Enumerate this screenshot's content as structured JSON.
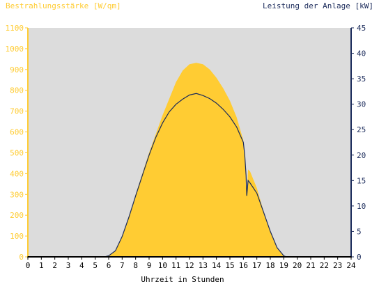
{
  "chart_data": {
    "type": "area",
    "title_left": "Bestrahlungsstärke [W/qm]",
    "title_right": "Leistung der Anlage [kW]",
    "xlabel": "Uhrzeit in Stunden",
    "x_ticks": [
      "0",
      "1",
      "2",
      "3",
      "4",
      "5",
      "6",
      "7",
      "8",
      "9",
      "10",
      "11",
      "12",
      "13",
      "14",
      "15",
      "16",
      "17",
      "18",
      "19",
      "20",
      "21",
      "22",
      "23",
      "24"
    ],
    "xlim": [
      0,
      24
    ],
    "y_left": {
      "min": 0,
      "max": 1100,
      "step": 100,
      "ticks": [
        "0",
        "100",
        "200",
        "300",
        "400",
        "500",
        "600",
        "700",
        "800",
        "900",
        "1000",
        "1100"
      ]
    },
    "y_right": {
      "min": 0,
      "max": 45,
      "step": 5,
      "ticks": [
        "0",
        "5",
        "10",
        "15",
        "20",
        "25",
        "30",
        "35",
        "40",
        "45"
      ]
    },
    "grid": false,
    "colors": {
      "left_axis": "#ffcc33",
      "right_axis": "#1a2a5a",
      "plot_bg": "#dcdcdc",
      "area": "#ffcc33",
      "line": "#1a2a5a"
    },
    "series": [
      {
        "axis": "left",
        "points": [
          [
            0,
            0
          ],
          [
            5.5,
            0
          ],
          [
            6,
            5
          ],
          [
            6.5,
            30
          ],
          [
            7,
            100
          ],
          [
            7.5,
            190
          ],
          [
            8,
            300
          ],
          [
            8.5,
            400
          ],
          [
            9,
            500
          ],
          [
            9.5,
            590
          ],
          [
            10,
            680
          ],
          [
            10.5,
            760
          ],
          [
            11,
            840
          ],
          [
            11.5,
            895
          ],
          [
            12,
            925
          ],
          [
            12.5,
            932
          ],
          [
            13,
            925
          ],
          [
            13.5,
            900
          ],
          [
            14,
            860
          ],
          [
            14.5,
            810
          ],
          [
            15,
            750
          ],
          [
            15.5,
            670
          ],
          [
            16,
            560
          ],
          [
            16.1,
            480
          ],
          [
            16.2,
            360
          ],
          [
            16.25,
            300
          ],
          [
            16.35,
            420
          ],
          [
            16.5,
            410
          ],
          [
            17,
            330
          ],
          [
            17.5,
            220
          ],
          [
            18,
            120
          ],
          [
            18.5,
            40
          ],
          [
            19,
            5
          ],
          [
            19.3,
            0
          ],
          [
            24,
            0
          ]
        ]
      },
      {
        "axis": "right",
        "points": [
          [
            0,
            0
          ],
          [
            5.7,
            0
          ],
          [
            6,
            0.2
          ],
          [
            6.5,
            1.2
          ],
          [
            7,
            4
          ],
          [
            7.5,
            7.8
          ],
          [
            8,
            12
          ],
          [
            8.5,
            16
          ],
          [
            9,
            20
          ],
          [
            9.5,
            23.5
          ],
          [
            10,
            26.3
          ],
          [
            10.5,
            28.5
          ],
          [
            11,
            30
          ],
          [
            11.5,
            31
          ],
          [
            12,
            31.8
          ],
          [
            12.5,
            32.1
          ],
          [
            13,
            31.7
          ],
          [
            13.5,
            31.1
          ],
          [
            14,
            30.2
          ],
          [
            14.5,
            29
          ],
          [
            15,
            27.5
          ],
          [
            15.5,
            25.5
          ],
          [
            16,
            22.5
          ],
          [
            16.1,
            20
          ],
          [
            16.2,
            16
          ],
          [
            16.25,
            12
          ],
          [
            16.35,
            15
          ],
          [
            16.5,
            14.5
          ],
          [
            17,
            12.5
          ],
          [
            17.5,
            8.8
          ],
          [
            18,
            5
          ],
          [
            18.5,
            1.8
          ],
          [
            19,
            0.2
          ],
          [
            19.2,
            0
          ],
          [
            24,
            0
          ]
        ]
      }
    ]
  }
}
